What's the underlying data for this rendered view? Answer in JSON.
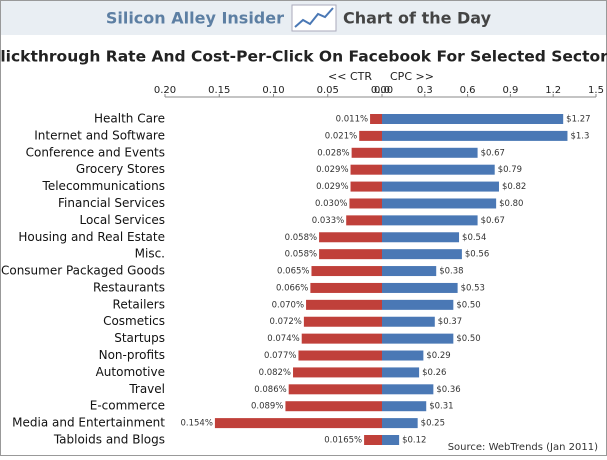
{
  "header": {
    "site": "Silicon Alley Insider",
    "feature": "Chart of the Day"
  },
  "chart_data": {
    "type": "butterfly",
    "title": "Clickthrough Rate And Cost-Per-Click On Facebook For Selected Sectors",
    "source": "Source: WebTrends (Jan 2011)",
    "categories": [
      "Health Care",
      "Internet and Software",
      "Conference and Events",
      "Grocery Stores",
      "Telecommunications",
      "Financial Services",
      "Local Services",
      "Housing and Real Estate",
      "Misc.",
      "Consumer Packaged Goods",
      "Restaurants",
      "Retailers",
      "Cosmetics",
      "Startups",
      "Non-profits",
      "Automotive",
      "Travel",
      "E-commerce",
      "Media and Entertainment",
      "Tabloids and Blogs"
    ],
    "ctr": {
      "label": "<< CTR",
      "color": "#c0403a",
      "xlim": [
        0.2,
        0
      ],
      "xticks": [
        {
          "value": 0.2,
          "label": "0.20"
        },
        0.15,
        {
          "value": 0.1,
          "label": "0.10"
        },
        0.05,
        {
          "value": 0,
          "label": "0.00"
        }
      ],
      "values": [
        0.011,
        0.021,
        0.028,
        0.029,
        0.029,
        0.03,
        0.033,
        0.058,
        0.058,
        0.065,
        0.066,
        0.07,
        0.072,
        0.074,
        0.077,
        0.082,
        0.086,
        0.089,
        0.154,
        0.0165
      ],
      "value_labels": [
        "0.011%",
        "0.021%",
        "0.028%",
        "0.029%",
        "0.029%",
        "0.030%",
        "0.033%",
        "0.058%",
        "0.058%",
        "0.065%",
        "0.066%",
        "0.070%",
        "0.072%",
        "0.074%",
        "0.077%",
        "0.082%",
        "0.086%",
        "0.089%",
        "0.154%",
        "0.0165%"
      ]
    },
    "cpc": {
      "label": "CPC >>",
      "color": "#4a78b5",
      "xlim": [
        0,
        1.5
      ],
      "xticks": [
        {
          "value": 0,
          "label": "0.0"
        },
        0.3,
        0.6,
        0.9,
        1.2,
        1.5
      ],
      "values": [
        1.27,
        1.3,
        0.67,
        0.79,
        0.82,
        0.8,
        0.67,
        0.54,
        0.56,
        0.38,
        0.53,
        0.5,
        0.37,
        0.5,
        0.29,
        0.26,
        0.36,
        0.31,
        0.25,
        0.12
      ],
      "value_labels": [
        "$1.27",
        "$1.3",
        "$0.67",
        "$0.79",
        "$0.82",
        "$0.80",
        "$0.67",
        "$0.54",
        "$0.56",
        "$0.38",
        "$0.53",
        "$0.50",
        "$0.37",
        "$0.50",
        "$0.29",
        "$0.26",
        "$0.36",
        "$0.31",
        "$0.25",
        "$0.12"
      ]
    }
  }
}
